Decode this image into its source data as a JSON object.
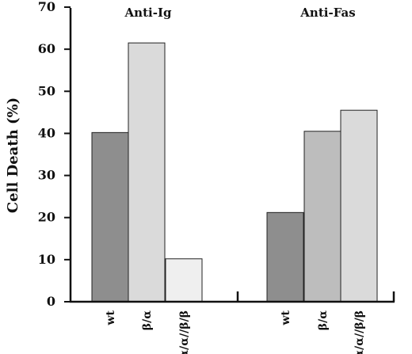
{
  "chart_data": {
    "type": "bar",
    "ylabel": "Cell  Death  (%)",
    "ylim": [
      0,
      70
    ],
    "yticks": [
      0,
      10,
      20,
      30,
      40,
      50,
      60,
      70
    ],
    "groups": [
      {
        "title": "Anti-Ig",
        "categories": [
          "wt",
          "β/α",
          "α/α//β/β"
        ],
        "values": [
          40.2,
          61.5,
          10.2
        ],
        "colors": [
          "#8e8e8e",
          "#dadada",
          "#efefef"
        ]
      },
      {
        "title": "Anti-Fas",
        "categories": [
          "wt",
          "β/α",
          "α/α//β/β"
        ],
        "values": [
          21.2,
          40.5,
          45.5
        ],
        "colors": [
          "#8e8e8e",
          "#bdbdbd",
          "#dadada"
        ]
      }
    ]
  }
}
